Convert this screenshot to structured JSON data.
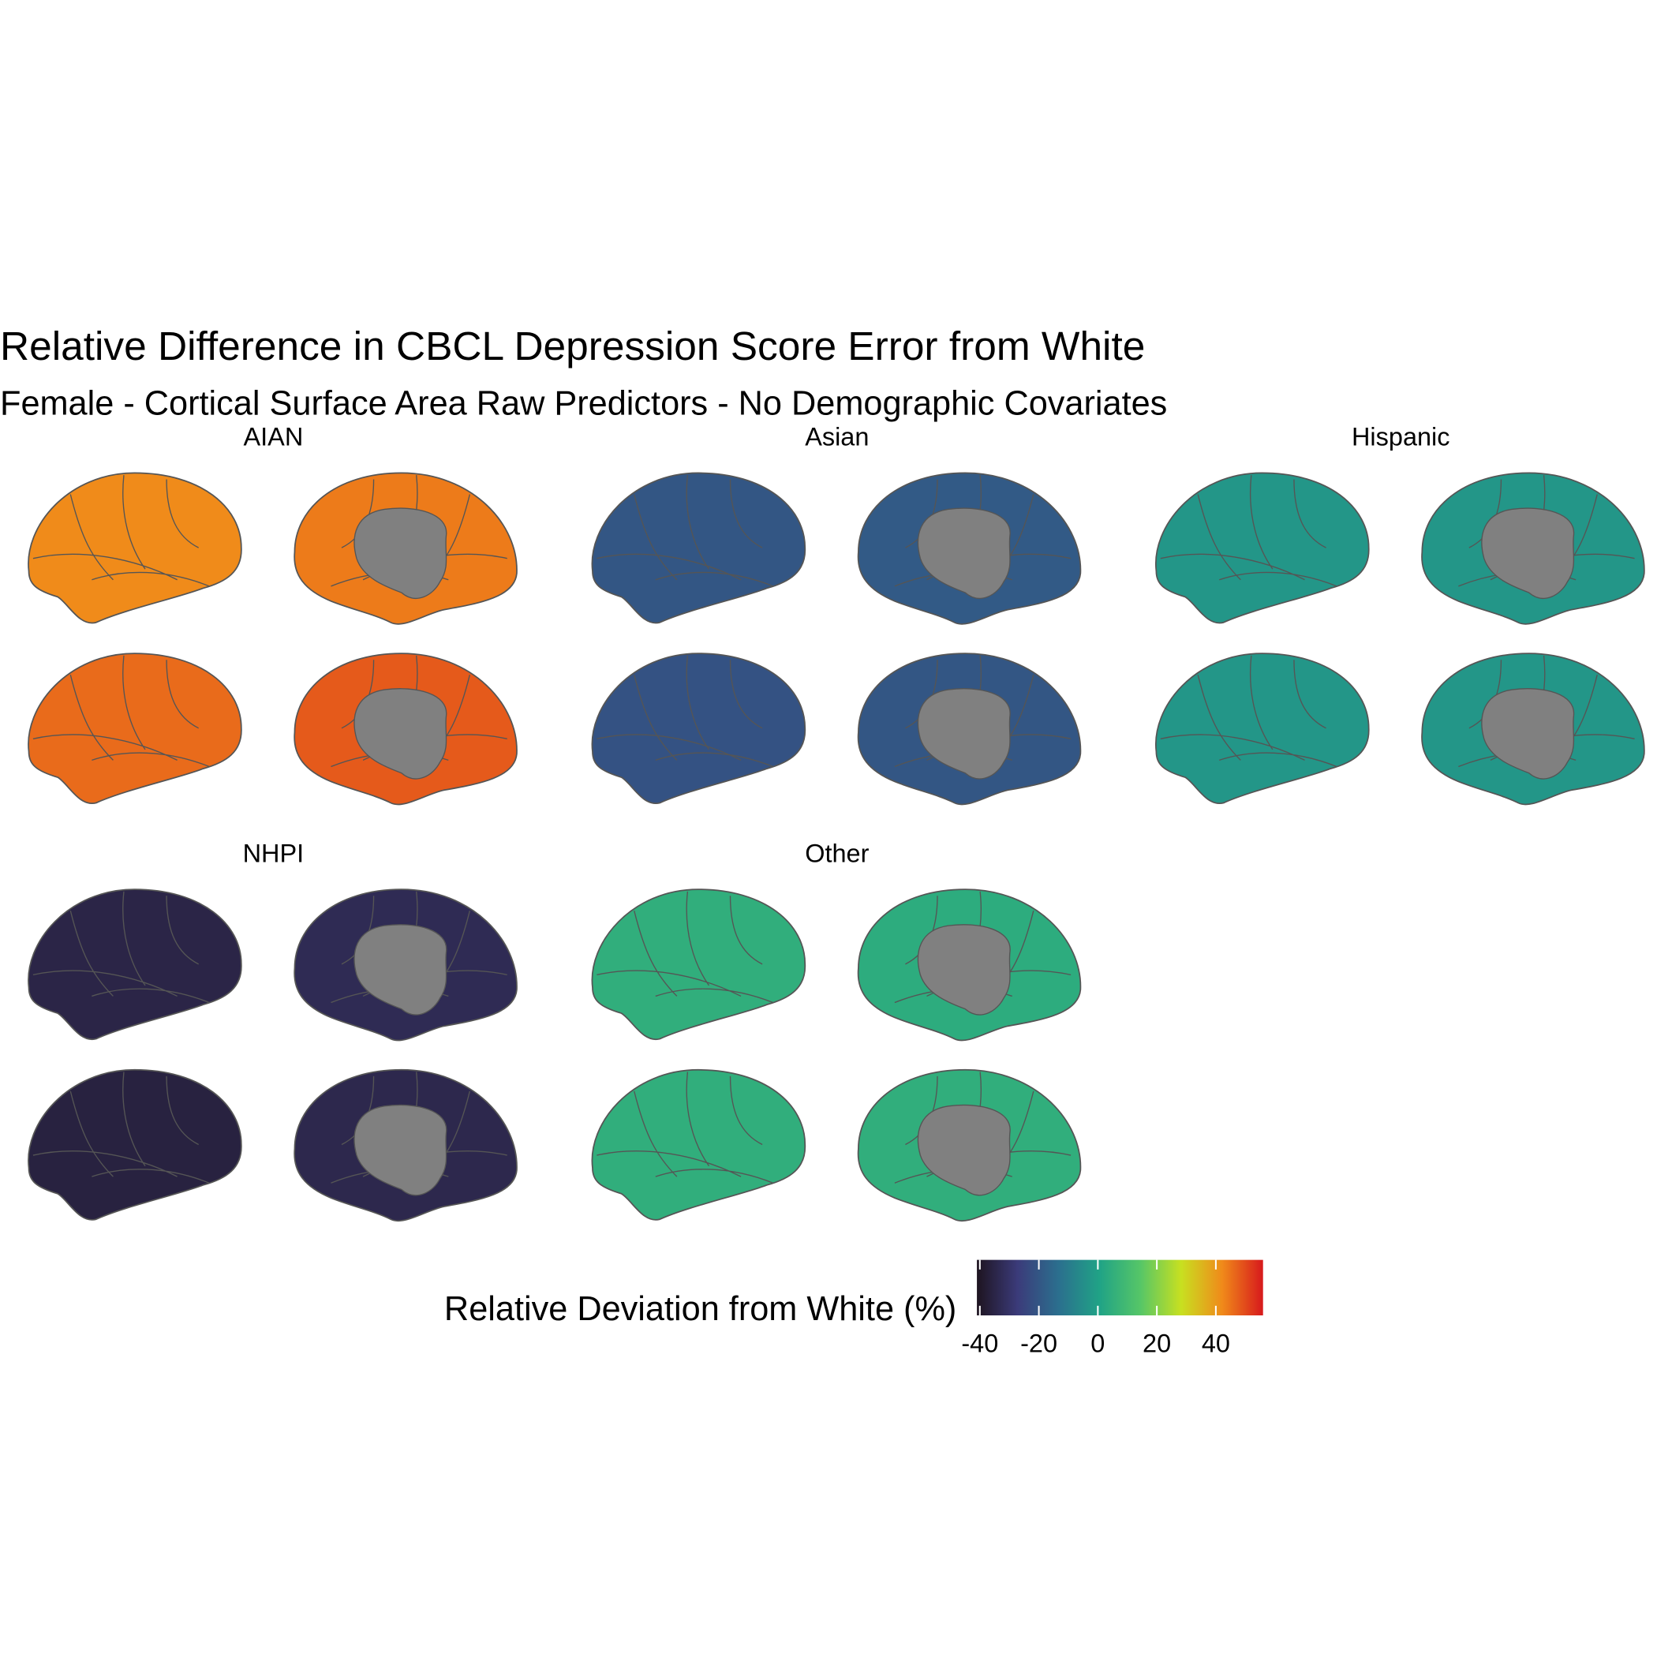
{
  "chart_data": {
    "type": "brain",
    "title": "Relative Difference in CBCL Depression Score Error from White",
    "subtitle": "Female - Cortical Surface Area Raw Predictors - No Demographic Covariates",
    "legend_title": "Relative Deviation from White (%)",
    "clim": [
      -41,
      56
    ],
    "cticks": [
      -40,
      -20,
      0,
      20,
      40
    ],
    "colors": [
      "#1e1420",
      "#3b3b7a",
      "#2b6f8e",
      "#20a386",
      "#56c667",
      "#c8e020",
      "#f08a1a",
      "#d7191c"
    ],
    "facets": [
      {
        "name": "AIAN",
        "values": [
          42,
          44,
          46,
          48
        ]
      },
      {
        "name": "Asian",
        "values": [
          -20,
          -19,
          -21,
          -20
        ]
      },
      {
        "name": "Hispanic",
        "values": [
          -3,
          -3,
          -3,
          -3
        ]
      },
      {
        "name": "NHPI",
        "values": [
          -35,
          -33,
          -36,
          -34
        ]
      },
      {
        "name": "Other",
        "values": [
          5,
          4,
          5,
          5
        ]
      }
    ]
  }
}
